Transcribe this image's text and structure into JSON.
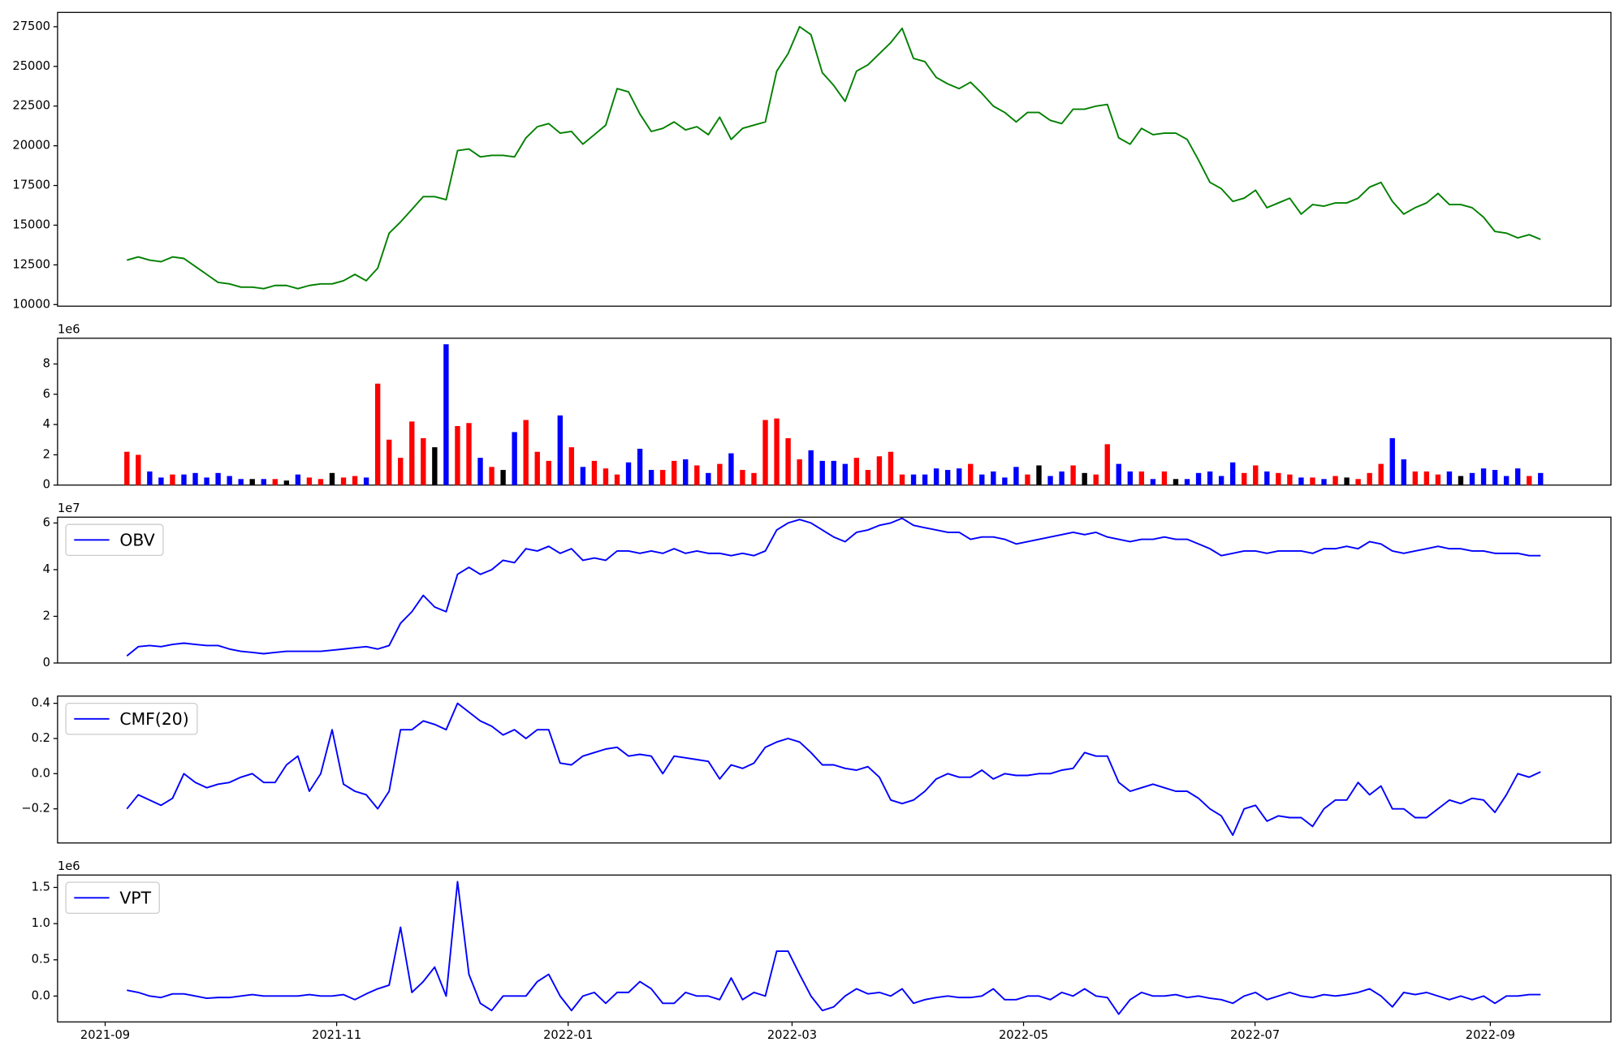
{
  "chart_data": [
    {
      "type": "line",
      "color": "green",
      "ylim": [
        9900,
        28400
      ],
      "yticks": [
        10000,
        12500,
        15000,
        17500,
        20000,
        22500,
        25000,
        27500
      ],
      "values": [
        12800,
        13000,
        12800,
        12700,
        13000,
        12900,
        12400,
        11900,
        11400,
        11300,
        11100,
        11100,
        11000,
        11200,
        11200,
        11000,
        11200,
        11300,
        11300,
        11500,
        11900,
        11500,
        12300,
        14500,
        15200,
        16000,
        16800,
        16800,
        16600,
        19700,
        19800,
        19300,
        19400,
        19400,
        19300,
        20500,
        21200,
        21400,
        20800,
        20900,
        20100,
        20700,
        21300,
        23600,
        23400,
        22000,
        20900,
        21100,
        21500,
        21000,
        21200,
        20700,
        21800,
        20400,
        21100,
        21300,
        21500,
        24700,
        25800,
        27500,
        27000,
        24600,
        23800,
        22800,
        24700,
        25100,
        25800,
        26500,
        27400,
        25500,
        25300,
        24300,
        23900,
        23600,
        24000,
        23300,
        22500,
        22100,
        21500,
        22100,
        22100,
        21600,
        21400,
        22300,
        22300,
        22500,
        22600,
        20500,
        20100,
        21100,
        20700,
        20800,
        20800,
        20400,
        19100,
        17700,
        17300,
        16500,
        16700,
        17200,
        16100,
        16400,
        16700,
        15700,
        16300,
        16200,
        16400,
        16400,
        16700,
        17400,
        17700,
        16500,
        15700,
        16100,
        16400,
        17000,
        16300,
        16300,
        16100,
        15500,
        14600,
        14500,
        14200,
        14400,
        14100
      ]
    },
    {
      "type": "bar",
      "offset_label": "1e6",
      "up_color": "red",
      "down_color": "blue",
      "flat_color": "black",
      "ylim": [
        0,
        9.7
      ],
      "yticks": [
        0,
        2,
        4,
        6,
        8
      ],
      "values": [
        2.2,
        2.0,
        0.9,
        0.5,
        0.7,
        0.7,
        0.8,
        0.5,
        0.8,
        0.6,
        0.4,
        0.4,
        0.4,
        0.4,
        0.3,
        0.7,
        0.5,
        0.4,
        0.8,
        0.5,
        0.6,
        0.5,
        6.7,
        3.0,
        1.8,
        4.2,
        3.1,
        2.5,
        9.3,
        3.9,
        4.1,
        1.8,
        1.2,
        1.0,
        3.5,
        4.3,
        2.2,
        1.6,
        4.6,
        2.5,
        1.2,
        1.6,
        1.1,
        0.7,
        1.5,
        2.4,
        1.0,
        1.0,
        1.6,
        1.7,
        1.3,
        0.8,
        1.4,
        2.1,
        1.0,
        0.8,
        4.3,
        4.4,
        3.1,
        1.7,
        2.3,
        1.6,
        1.6,
        1.4,
        1.8,
        1.0,
        1.9,
        2.2,
        0.7,
        0.7,
        0.7,
        1.1,
        1.0,
        1.1,
        1.4,
        0.7,
        0.9,
        0.5,
        1.2,
        0.7,
        1.3,
        0.6,
        0.9,
        1.3,
        0.8,
        0.7,
        2.7,
        1.4,
        0.9,
        0.9,
        0.4,
        0.9,
        0.4,
        0.4,
        0.8,
        0.9,
        0.6,
        1.5,
        0.8,
        1.3,
        0.9,
        0.8,
        0.7,
        0.5,
        0.5,
        0.4,
        0.6,
        0.5,
        0.4,
        0.8,
        1.4,
        3.1,
        1.7,
        0.9,
        0.9,
        0.7,
        0.9,
        0.6,
        0.8,
        1.1,
        1.0,
        0.6,
        1.1,
        0.6,
        0.8
      ]
    },
    {
      "type": "line",
      "offset_label": "1e7",
      "legend": "upper left",
      "ylim": [
        0,
        6.25
      ],
      "yticks": [
        0,
        2,
        4,
        6
      ],
      "series": [
        {
          "name": "OBV",
          "color": "blue",
          "values": [
            0.3,
            0.7,
            0.75,
            0.7,
            0.8,
            0.85,
            0.8,
            0.75,
            0.75,
            0.6,
            0.5,
            0.45,
            0.4,
            0.45,
            0.5,
            0.5,
            0.5,
            0.5,
            0.55,
            0.6,
            0.65,
            0.7,
            0.6,
            0.75,
            1.7,
            2.2,
            2.9,
            2.4,
            2.2,
            3.8,
            4.1,
            3.8,
            4.0,
            4.4,
            4.3,
            4.9,
            4.8,
            5.0,
            4.7,
            4.9,
            4.4,
            4.5,
            4.4,
            4.8,
            4.8,
            4.7,
            4.8,
            4.7,
            4.9,
            4.7,
            4.8,
            4.7,
            4.7,
            4.6,
            4.7,
            4.6,
            4.8,
            5.7,
            6.0,
            6.15,
            6.0,
            5.7,
            5.4,
            5.2,
            5.6,
            5.7,
            5.9,
            6.0,
            6.2,
            5.9,
            5.8,
            5.7,
            5.6,
            5.6,
            5.3,
            5.4,
            5.4,
            5.3,
            5.1,
            5.2,
            5.3,
            5.4,
            5.5,
            5.6,
            5.5,
            5.6,
            5.4,
            5.3,
            5.2,
            5.3,
            5.3,
            5.4,
            5.3,
            5.3,
            5.1,
            4.9,
            4.6,
            4.7,
            4.8,
            4.8,
            4.7,
            4.8,
            4.8,
            4.8,
            4.7,
            4.9,
            4.9,
            5.0,
            4.9,
            5.2,
            5.1,
            4.8,
            4.7,
            4.8,
            4.9,
            5.0,
            4.9,
            4.9,
            4.8,
            4.8,
            4.7,
            4.7,
            4.7,
            4.6,
            4.6
          ]
        }
      ]
    },
    {
      "type": "line",
      "legend": "upper left",
      "ylim": [
        -0.394,
        0.441
      ],
      "yticks": [
        {
          "value": -0.2,
          "label": "−0.2"
        },
        {
          "value": 0,
          "label": "0.0"
        },
        0.2,
        0.4
      ],
      "series": [
        {
          "name": "CMF(20)",
          "color": "blue",
          "values": [
            -0.2,
            -0.12,
            -0.15,
            -0.18,
            -0.14,
            0.0,
            -0.05,
            -0.08,
            -0.06,
            -0.05,
            -0.02,
            0.0,
            -0.05,
            -0.05,
            0.05,
            0.1,
            -0.1,
            0.0,
            0.25,
            -0.06,
            -0.1,
            -0.12,
            -0.2,
            -0.1,
            0.25,
            0.25,
            0.3,
            0.28,
            0.25,
            0.4,
            0.35,
            0.3,
            0.27,
            0.22,
            0.25,
            0.2,
            0.25,
            0.25,
            0.06,
            0.05,
            0.1,
            0.12,
            0.14,
            0.15,
            0.1,
            0.11,
            0.1,
            0.0,
            0.1,
            0.09,
            0.08,
            0.07,
            -0.03,
            0.05,
            0.03,
            0.06,
            0.15,
            0.18,
            0.2,
            0.18,
            0.12,
            0.05,
            0.05,
            0.03,
            0.02,
            0.04,
            -0.02,
            -0.15,
            -0.17,
            -0.15,
            -0.1,
            -0.03,
            0.0,
            -0.02,
            -0.02,
            0.02,
            -0.03,
            0.0,
            -0.01,
            -0.01,
            0.0,
            0.0,
            0.02,
            0.03,
            0.12,
            0.1,
            0.1,
            -0.05,
            -0.1,
            -0.08,
            -0.06,
            -0.08,
            -0.1,
            -0.1,
            -0.14,
            -0.2,
            -0.24,
            -0.35,
            -0.2,
            -0.18,
            -0.27,
            -0.24,
            -0.25,
            -0.25,
            -0.3,
            -0.2,
            -0.15,
            -0.15,
            -0.05,
            -0.12,
            -0.07,
            -0.2,
            -0.2,
            -0.25,
            -0.25,
            -0.2,
            -0.15,
            -0.17,
            -0.14,
            -0.15,
            -0.22,
            -0.12,
            0.0,
            -0.02,
            0.01
          ]
        }
      ]
    },
    {
      "type": "line",
      "offset_label": "1e6",
      "legend": "upper left",
      "ylim": [
        -0.357,
        1.671
      ],
      "yticks": [
        {
          "value": 0,
          "label": "0.0"
        },
        0.5,
        {
          "value": 1,
          "label": "1.0"
        },
        1.5
      ],
      "xticks": [
        "2021-09",
        "2021-11",
        "2022-01",
        "2022-03",
        "2022-05",
        "2022-07",
        "2022-09"
      ],
      "series": [
        {
          "name": "VPT",
          "color": "blue",
          "values": [
            0.08,
            0.05,
            0.0,
            -0.02,
            0.03,
            0.03,
            0.0,
            -0.03,
            -0.02,
            -0.02,
            0.0,
            0.02,
            0.0,
            0.0,
            0.0,
            0.0,
            0.02,
            0.0,
            0.0,
            0.02,
            -0.05,
            0.03,
            0.1,
            0.15,
            0.95,
            0.05,
            0.2,
            0.4,
            0.0,
            1.58,
            0.3,
            -0.1,
            -0.2,
            0.0,
            0.0,
            0.0,
            0.2,
            0.3,
            0.0,
            -0.2,
            0.0,
            0.05,
            -0.1,
            0.05,
            0.05,
            0.2,
            0.1,
            -0.1,
            -0.1,
            0.05,
            0.0,
            0.0,
            -0.05,
            0.25,
            -0.05,
            0.05,
            0.0,
            0.62,
            0.62,
            0.3,
            0.0,
            -0.2,
            -0.15,
            0.0,
            0.1,
            0.03,
            0.05,
            0.0,
            0.1,
            -0.1,
            -0.05,
            -0.02,
            0.0,
            -0.02,
            -0.02,
            0.0,
            0.1,
            -0.05,
            -0.05,
            0.0,
            0.0,
            -0.05,
            0.05,
            0.0,
            0.1,
            0.0,
            -0.02,
            -0.25,
            -0.05,
            0.05,
            0.0,
            0.0,
            0.02,
            -0.02,
            0.0,
            -0.03,
            -0.05,
            -0.1,
            0.0,
            0.05,
            -0.05,
            0.0,
            0.05,
            0.0,
            -0.02,
            0.02,
            0.0,
            0.02,
            0.05,
            0.1,
            0.0,
            -0.15,
            0.05,
            0.02,
            0.05,
            0.0,
            -0.05,
            0.0,
            -0.05,
            0.0,
            -0.1,
            0.0,
            0.0,
            0.02,
            0.02
          ]
        }
      ]
    }
  ]
}
